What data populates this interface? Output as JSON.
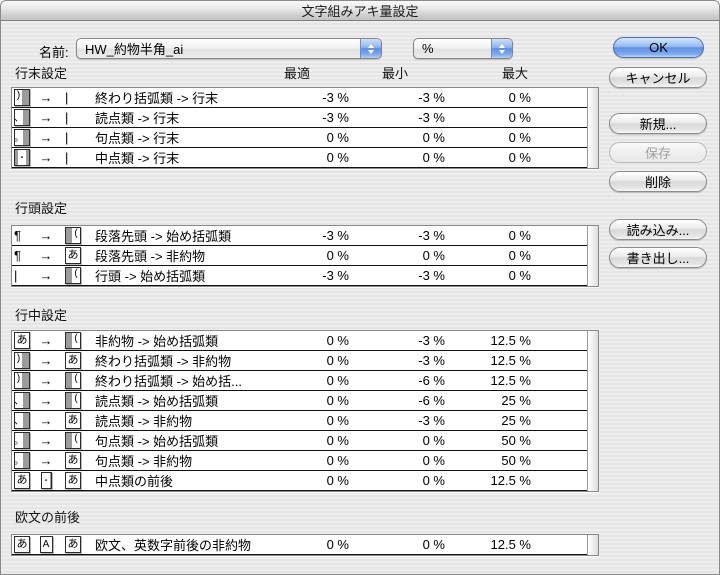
{
  "window": {
    "title": "文字組みアキ量設定"
  },
  "name_row": {
    "label": "名前:",
    "name_value": "HW_約物半角_ai",
    "unit_value": "%"
  },
  "columns": {
    "optimal": "最適",
    "minimum": "最小",
    "maximum": "最大"
  },
  "buttons": {
    "ok": "OK",
    "cancel": "キャンセル",
    "new": "新規...",
    "save": "保存",
    "delete": "削除",
    "import": "読み込み...",
    "export": "書き出し..."
  },
  "icon_glyphs": {
    "arrow": "→",
    "bar": "|",
    "pilcrow": "¶",
    "box-close-paren": ")",
    "box-touten": "、",
    "box-kuten": "。",
    "box-open-paren": "(",
    "box-a": "あ",
    "box-latin": "A",
    "box-nakaten": "・",
    "box-nakaten-mid": "・"
  },
  "sections": [
    {
      "title": "行末設定",
      "rows": [
        {
          "icons": [
            "box-close-paren",
            "arrow",
            "bar"
          ],
          "label": "終わり括弧類 -> 行末",
          "values": [
            "-3 %",
            "-3 %",
            "0 %"
          ]
        },
        {
          "icons": [
            "box-touten",
            "arrow",
            "bar"
          ],
          "label": "読点類 -> 行末",
          "values": [
            "-3 %",
            "-3 %",
            "0 %"
          ]
        },
        {
          "icons": [
            "box-kuten",
            "arrow",
            "bar"
          ],
          "label": "句点類 -> 行末",
          "values": [
            "0 %",
            "0 %",
            "0 %"
          ]
        },
        {
          "icons": [
            "box-nakaten",
            "arrow",
            "bar"
          ],
          "label": "中点類 -> 行末",
          "values": [
            "0 %",
            "0 %",
            "0 %"
          ]
        }
      ]
    },
    {
      "title": "行頭設定",
      "rows": [
        {
          "icons": [
            "pilcrow",
            "arrow",
            "box-open-paren"
          ],
          "label": "段落先頭 -> 始め括弧類",
          "values": [
            "-3 %",
            "-3 %",
            "0 %"
          ]
        },
        {
          "icons": [
            "pilcrow",
            "arrow",
            "box-a"
          ],
          "label": "段落先頭 -> 非約物",
          "values": [
            "0 %",
            "0 %",
            "0 %"
          ]
        },
        {
          "icons": [
            "bar",
            "arrow",
            "box-open-paren"
          ],
          "label": "行頭 -> 始め括弧類",
          "values": [
            "-3 %",
            "-3 %",
            "0 %"
          ]
        }
      ]
    },
    {
      "title": "行中設定",
      "rows": [
        {
          "icons": [
            "box-a",
            "arrow",
            "box-open-paren"
          ],
          "label": "非約物 -> 始め括弧類",
          "values": [
            "0 %",
            "-3 %",
            "12.5 %"
          ]
        },
        {
          "icons": [
            "box-close-paren",
            "arrow",
            "box-a"
          ],
          "label": "終わり括弧類 -> 非約物",
          "values": [
            "0 %",
            "-3 %",
            "12.5 %"
          ]
        },
        {
          "icons": [
            "box-close-paren",
            "arrow",
            "box-open-paren"
          ],
          "label": "終わり括弧類 -> 始め括...",
          "values": [
            "0 %",
            "-6 %",
            "12.5 %"
          ]
        },
        {
          "icons": [
            "box-touten",
            "arrow",
            "box-open-paren"
          ],
          "label": "読点類 -> 始め括弧類",
          "values": [
            "0 %",
            "-6 %",
            "25 %"
          ]
        },
        {
          "icons": [
            "box-touten",
            "arrow",
            "box-a"
          ],
          "label": "読点類 -> 非約物",
          "values": [
            "0 %",
            "-3 %",
            "25 %"
          ]
        },
        {
          "icons": [
            "box-kuten",
            "arrow",
            "box-open-paren"
          ],
          "label": "句点類 -> 始め括弧類",
          "values": [
            "0 %",
            "0 %",
            "50 %"
          ]
        },
        {
          "icons": [
            "box-kuten",
            "arrow",
            "box-a"
          ],
          "label": "句点類 -> 非約物",
          "values": [
            "0 %",
            "0 %",
            "50 %"
          ]
        },
        {
          "icons": [
            "box-a",
            "box-nakaten-mid",
            "box-a"
          ],
          "label": "中点類の前後",
          "values": [
            "0 %",
            "0 %",
            "12.5 %"
          ]
        }
      ]
    },
    {
      "title": "欧文の前後",
      "rows": [
        {
          "icons": [
            "box-a",
            "box-latin",
            "box-a"
          ],
          "label": "欧文、英数字前後の非約物",
          "values": [
            "0 %",
            "0 %",
            "12.5 %"
          ]
        }
      ]
    }
  ],
  "colors": {
    "aqua_blue": "#5e90e2",
    "pinstripe": "#e5e5e5",
    "icon_gray": "#9c9c9c"
  }
}
